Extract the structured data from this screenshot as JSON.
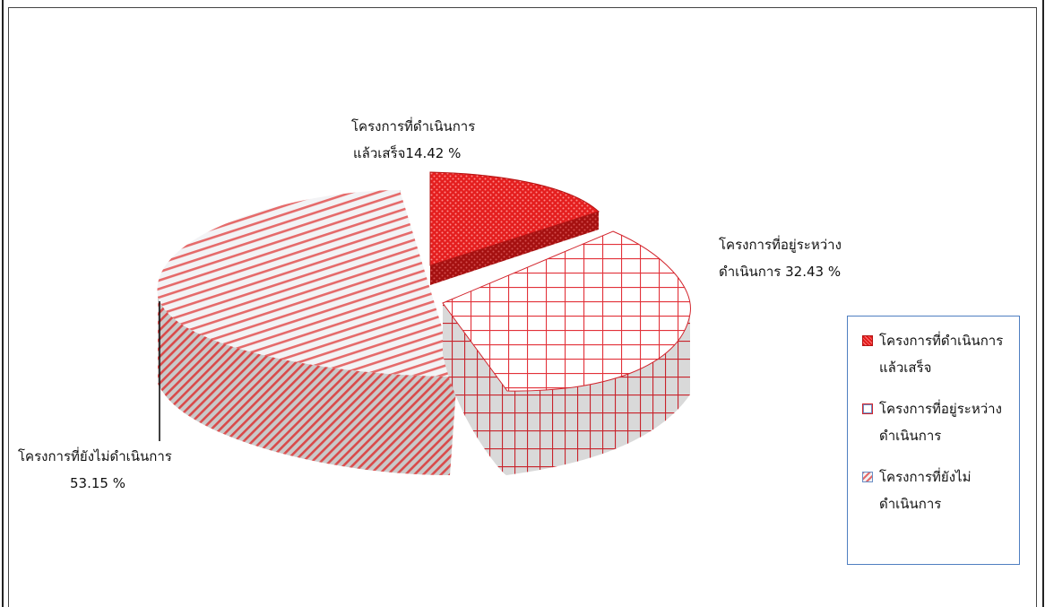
{
  "chart_data": {
    "type": "pie",
    "style": "3d-exploded",
    "slices": [
      {
        "label_line1": "โครงการที่ดำเนินการ",
        "label_line2": "แล้วเสร็จ",
        "data_label_line1": "โครงการที่ดำเนินการ",
        "data_label_line2": "แล้วเสร็จ14.42 %",
        "value": 14.42,
        "color": "#e01f1f",
        "pattern": "dots"
      },
      {
        "label_line1": "โครงการที่อยู่ระหว่าง",
        "label_line2": "ดำเนินการ",
        "data_label_line1": "โครงการที่อยู่ระหว่าง",
        "data_label_line2": "ดำเนินการ  32.43 %",
        "value": 32.43,
        "color": "#e8303a",
        "pattern": "grid"
      },
      {
        "label_line1": "โครงการที่ยังไม่",
        "label_line2": "ดำเนินการ",
        "data_label_line1": "โครงการที่ยังไม่ดำเนินการ",
        "data_label_line2": "53.15 %",
        "value": 53.15,
        "color": "#e25a5a",
        "pattern": "diagonal"
      }
    ],
    "legend_position": "right",
    "legend_border_color": "#4f7fc1"
  }
}
